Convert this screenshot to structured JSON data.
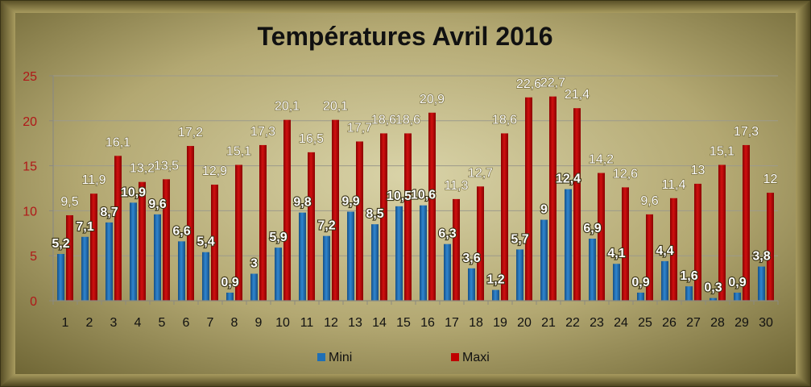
{
  "chart_data": {
    "type": "bar",
    "title": "Températures Avril 2016",
    "xlabel": "",
    "ylabel": "",
    "ylim": [
      0,
      25
    ],
    "yticks": [
      "0",
      "5",
      "10",
      "15",
      "20",
      "25"
    ],
    "grid": true,
    "legend_position": "bottom",
    "categories": [
      "1",
      "2",
      "3",
      "4",
      "5",
      "6",
      "7",
      "8",
      "9",
      "10",
      "11",
      "12",
      "13",
      "14",
      "15",
      "16",
      "17",
      "18",
      "19",
      "20",
      "21",
      "22",
      "23",
      "24",
      "25",
      "26",
      "27",
      "28",
      "29",
      "30"
    ],
    "series": [
      {
        "name": "Mini",
        "color": "#1f6fb5",
        "values": [
          5.2,
          7.1,
          8.7,
          10.9,
          9.6,
          6.6,
          5.4,
          0.9,
          3,
          5.9,
          9.8,
          7.2,
          9.9,
          8.5,
          10.5,
          10.6,
          6.3,
          3.6,
          1.2,
          5.7,
          9,
          12.4,
          6.9,
          4.1,
          0.9,
          4.4,
          1.6,
          0.3,
          0.9,
          3.8
        ],
        "labels": [
          "5,2",
          "7,1",
          "8,7",
          "10,9",
          "9,6",
          "6,6",
          "5,4",
          "0,9",
          "3",
          "5,9",
          "9,8",
          "7,2",
          "9,9",
          "8,5",
          "10,5",
          "10,6",
          "6,3",
          "3,6",
          "1,2",
          "5,7",
          "9",
          "12,4",
          "6,9",
          "4,1",
          "0,9",
          "4,4",
          "1,6",
          "0,3",
          "0,9",
          "3,8"
        ]
      },
      {
        "name": "Maxi",
        "color": "#c00000",
        "values": [
          9.5,
          11.9,
          16.1,
          13.2,
          13.5,
          17.2,
          12.9,
          15.1,
          17.3,
          20.1,
          16.5,
          20.1,
          17.7,
          18.6,
          18.6,
          20.9,
          11.3,
          12.7,
          18.6,
          22.6,
          22.7,
          21.4,
          14.2,
          12.6,
          9.6,
          11.4,
          13,
          15.1,
          17.3,
          12
        ],
        "labels": [
          "9,5",
          "11,9",
          "16,1",
          "13,2",
          "13,5",
          "17,2",
          "12,9",
          "15,1",
          "17,3",
          "20,1",
          "16,5",
          "20,1",
          "17,7",
          "18,6",
          "18,6",
          "20,9",
          "11,3",
          "12,7",
          "18,6",
          "22,6",
          "22,7",
          "21,4",
          "14,2",
          "12,6",
          "9,6",
          "11,4",
          "13",
          "15,1",
          "17,3",
          "12"
        ]
      }
    ]
  }
}
